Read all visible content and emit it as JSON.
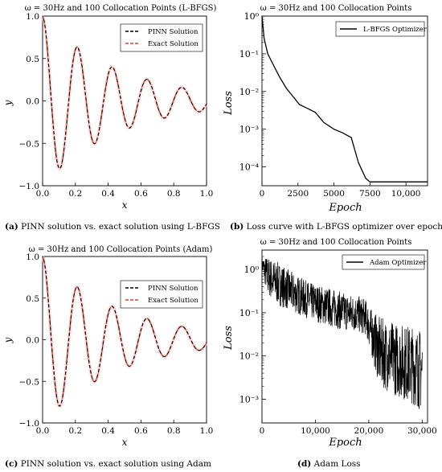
{
  "panels": [
    {
      "id": "a",
      "kind": "solution",
      "title": "ω = 30Hz and 100 Collocation Points (L-BFGS)",
      "caption_letter": "(a)",
      "caption_text": "PINN solution vs. exact solution using L-BFGS",
      "xlabel": "x",
      "ylabel": "y",
      "xlim": [
        0.0,
        1.0
      ],
      "ylim": [
        -1.0,
        1.0
      ],
      "xticks": [
        "0.0",
        "0.2",
        "0.4",
        "0.6",
        "0.8",
        "1.0"
      ],
      "yticks": [
        "−1.0",
        "−0.5",
        "0.0",
        "0.5",
        "1.0"
      ],
      "legend": [
        "PINN Solution",
        "Exact Solution"
      ]
    },
    {
      "id": "b",
      "kind": "loss",
      "title": "ω = 30Hz and 100 Collocation Points",
      "caption_letter": "(b)",
      "caption_text": "Loss curve with L-BFGS optimizer over epochs",
      "xlabel": "Epoch",
      "ylabel": "Loss",
      "xlim": [
        0,
        11500
      ],
      "ylim_log10": [
        -4.5,
        0
      ],
      "xticks": [
        "0",
        "2500",
        "5000",
        "7500",
        "10,000"
      ],
      "yticks": [
        "10⁰",
        "10⁻¹",
        "10⁻²",
        "10⁻³",
        "10⁻⁴"
      ],
      "legend": [
        "L-BFGS Optimizer"
      ]
    },
    {
      "id": "c",
      "kind": "solution",
      "title": "ω = 30Hz and 100 Collocation Points (Adam)",
      "caption_letter": "(c)",
      "caption_text": "PINN solution vs. exact solution using Adam",
      "xlabel": "x",
      "ylabel": "y",
      "xlim": [
        0.0,
        1.0
      ],
      "ylim": [
        -1.0,
        1.0
      ],
      "xticks": [
        "0.0",
        "0.2",
        "0.4",
        "0.6",
        "0.8",
        "1.0"
      ],
      "yticks": [
        "−1.0",
        "−0.5",
        "0.0",
        "0.5",
        "1.0"
      ],
      "legend": [
        "PINN Solution",
        "Exact Solution"
      ]
    },
    {
      "id": "d",
      "kind": "loss",
      "title": "ω = 30Hz and 100 Collocation Points",
      "caption_letter": "(d)",
      "caption_text": "Adam Loss",
      "xlabel": "Epoch",
      "ylabel": "Loss",
      "xlim": [
        0,
        31000
      ],
      "ylim_log10": [
        -3.55,
        0.45
      ],
      "xticks": [
        "0",
        "10,000",
        "20,000",
        "30,000"
      ],
      "yticks": [
        "10⁰",
        "10⁻¹",
        "10⁻²",
        "10⁻³"
      ],
      "legend": [
        "Adam Optimizer"
      ]
    }
  ],
  "chart_data": [
    {
      "type": "line",
      "panel": "a",
      "series": [
        {
          "name": "PINN Solution",
          "style": "dashed",
          "color": "#000000"
        },
        {
          "name": "Exact Solution",
          "style": "dashed",
          "color": "#d2452d"
        }
      ],
      "x": [
        0.0,
        0.05,
        0.1,
        0.15,
        0.2,
        0.25,
        0.3,
        0.35,
        0.4,
        0.45,
        0.5,
        0.55,
        0.6,
        0.65,
        0.7,
        0.75,
        0.8,
        0.85,
        0.9,
        0.95,
        1.0
      ],
      "y": [
        1.0,
        0.02,
        -0.82,
        -0.05,
        0.66,
        0.05,
        -0.53,
        -0.04,
        0.43,
        0.03,
        -0.35,
        -0.03,
        0.29,
        0.02,
        -0.22,
        -0.02,
        0.18,
        0.01,
        -0.15,
        -0.01,
        0.0
      ]
    },
    {
      "type": "line",
      "panel": "b",
      "series": [
        {
          "name": "L-BFGS Optimizer",
          "color": "#000000"
        }
      ],
      "x": [
        0,
        150,
        400,
        800,
        1200,
        1700,
        2200,
        2600,
        3200,
        3700,
        4300,
        5000,
        5600,
        6200,
        6700,
        7200,
        7500,
        11500
      ],
      "y": [
        1.0,
        0.25,
        0.1,
        0.05,
        0.025,
        0.012,
        0.007,
        0.0045,
        0.0035,
        0.0028,
        0.0015,
        0.001,
        0.0008,
        0.0006,
        0.00013,
        5e-05,
        4e-05,
        4e-05
      ]
    },
    {
      "type": "line",
      "panel": "c",
      "series": [
        {
          "name": "PINN Solution",
          "style": "dashed",
          "color": "#000000"
        },
        {
          "name": "Exact Solution",
          "style": "dashed",
          "color": "#d2452d"
        }
      ],
      "x": [
        0.0,
        0.05,
        0.1,
        0.15,
        0.2,
        0.25,
        0.3,
        0.35,
        0.4,
        0.45,
        0.5,
        0.55,
        0.6,
        0.65,
        0.7,
        0.75,
        0.8,
        0.85,
        0.9,
        0.95,
        1.0
      ],
      "y": [
        1.0,
        0.02,
        -0.8,
        -0.05,
        0.66,
        0.05,
        -0.53,
        -0.04,
        0.43,
        0.03,
        -0.35,
        -0.03,
        0.29,
        0.02,
        -0.22,
        -0.02,
        0.18,
        0.01,
        -0.15,
        -0.01,
        0.0
      ]
    },
    {
      "type": "line",
      "panel": "d",
      "series": [
        {
          "name": "Adam Optimizer",
          "color": "#000000"
        }
      ],
      "envelope_x": [
        0,
        1000,
        3000,
        6000,
        9000,
        12000,
        15000,
        18000,
        19500,
        20500,
        22000,
        25000,
        28000,
        30000
      ],
      "envelope_upper": [
        2.0,
        2.0,
        1.5,
        0.8,
        0.5,
        0.4,
        0.3,
        0.25,
        0.2,
        0.12,
        0.08,
        0.06,
        0.05,
        0.04
      ],
      "envelope_lower": [
        0.9,
        0.25,
        0.15,
        0.1,
        0.07,
        0.05,
        0.04,
        0.035,
        0.03,
        0.01,
        0.002,
        0.0012,
        0.0008,
        0.0005
      ]
    }
  ]
}
